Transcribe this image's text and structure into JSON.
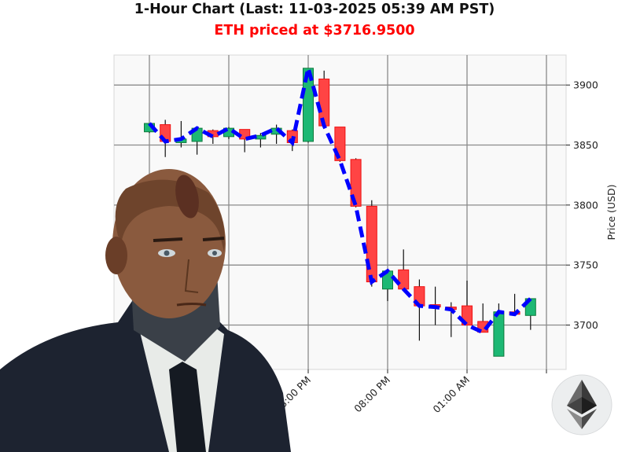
{
  "header": {
    "title": "1-Hour Chart (Last: 11-03-2025 05:39 AM PST)",
    "subtitle": "ETH priced at $3716.9500"
  },
  "colors": {
    "up": "#1db874",
    "down": "#ff4444",
    "close_line": "#0000ff",
    "subtitle": "#ff0000"
  },
  "icons": {
    "portrait": "android-portrait",
    "logo": "ethereum-logo"
  },
  "chart_data": {
    "type": "candlestick",
    "title": "1-Hour Chart (Last: 11-03-2025 05:39 AM PST)",
    "ylabel": "Price (USD)",
    "ylim": [
      3663,
      3925
    ],
    "y_ticks": [
      3700,
      3750,
      3800,
      3850,
      3900
    ],
    "y_axis_side": "right",
    "grid": true,
    "x_tick_labels": [
      {
        "index": 10,
        "label": "03:00 PM"
      },
      {
        "index": 15,
        "label": "08:00 PM"
      },
      {
        "index": 20,
        "label": "01:00 AM"
      }
    ],
    "x_tick_indices": [
      0,
      5,
      10,
      15,
      20,
      25
    ],
    "overlay": "close price dashed line",
    "candles": [
      {
        "t": "05:00 AM",
        "o": 3861,
        "h": 3868,
        "l": 3860,
        "c": 3868
      },
      {
        "t": "06:00 AM",
        "o": 3867,
        "h": 3871,
        "l": 3840,
        "c": 3853
      },
      {
        "t": "07:00 AM",
        "o": 3852,
        "h": 3870,
        "l": 3848,
        "c": 3855
      },
      {
        "t": "08:00 AM",
        "o": 3853,
        "h": 3865,
        "l": 3842,
        "c": 3864
      },
      {
        "t": "09:00 AM",
        "o": 3862,
        "h": 3863,
        "l": 3851,
        "c": 3857
      },
      {
        "t": "10:00 AM",
        "o": 3857,
        "h": 3865,
        "l": 3855,
        "c": 3864
      },
      {
        "t": "11:00 AM",
        "o": 3863,
        "h": 3863,
        "l": 3844,
        "c": 3855
      },
      {
        "t": "12:00 PM",
        "o": 3855,
        "h": 3860,
        "l": 3848,
        "c": 3858
      },
      {
        "t": "01:00 PM",
        "o": 3859,
        "h": 3867,
        "l": 3851,
        "c": 3864
      },
      {
        "t": "02:00 PM",
        "o": 3862,
        "h": 3863,
        "l": 3845,
        "c": 3852
      },
      {
        "t": "03:00 PM",
        "o": 3853,
        "h": 3914,
        "l": 3852,
        "c": 3914
      },
      {
        "t": "04:00 PM",
        "o": 3905,
        "h": 3912,
        "l": 3866,
        "c": 3866
      },
      {
        "t": "05:00 PM",
        "o": 3865,
        "h": 3865,
        "l": 3836,
        "c": 3837
      },
      {
        "t": "06:00 PM",
        "o": 3838,
        "h": 3839,
        "l": 3798,
        "c": 3799
      },
      {
        "t": "07:00 PM",
        "o": 3799,
        "h": 3804,
        "l": 3732,
        "c": 3736
      },
      {
        "t": "08:00 PM",
        "o": 3730,
        "h": 3745,
        "l": 3720,
        "c": 3745
      },
      {
        "t": "09:00 PM",
        "o": 3746,
        "h": 3763,
        "l": 3730,
        "c": 3730
      },
      {
        "t": "10:00 PM",
        "o": 3732,
        "h": 3738,
        "l": 3687,
        "c": 3716
      },
      {
        "t": "11:00 PM",
        "o": 3717,
        "h": 3732,
        "l": 3700,
        "c": 3715
      },
      {
        "t": "12:00 AM",
        "o": 3715,
        "h": 3719,
        "l": 3690,
        "c": 3713
      },
      {
        "t": "01:00 AM",
        "o": 3716,
        "h": 3737,
        "l": 3700,
        "c": 3700
      },
      {
        "t": "02:00 AM",
        "o": 3703,
        "h": 3718,
        "l": 3694,
        "c": 3694
      },
      {
        "t": "03:00 AM",
        "o": 3674,
        "h": 3718,
        "l": 3674,
        "c": 3711
      },
      {
        "t": "04:00 AM",
        "o": 3711,
        "h": 3726,
        "l": 3709,
        "c": 3709
      },
      {
        "t": "05:00 AM",
        "o": 3708,
        "h": 3722,
        "l": 3696,
        "c": 3722
      }
    ]
  }
}
